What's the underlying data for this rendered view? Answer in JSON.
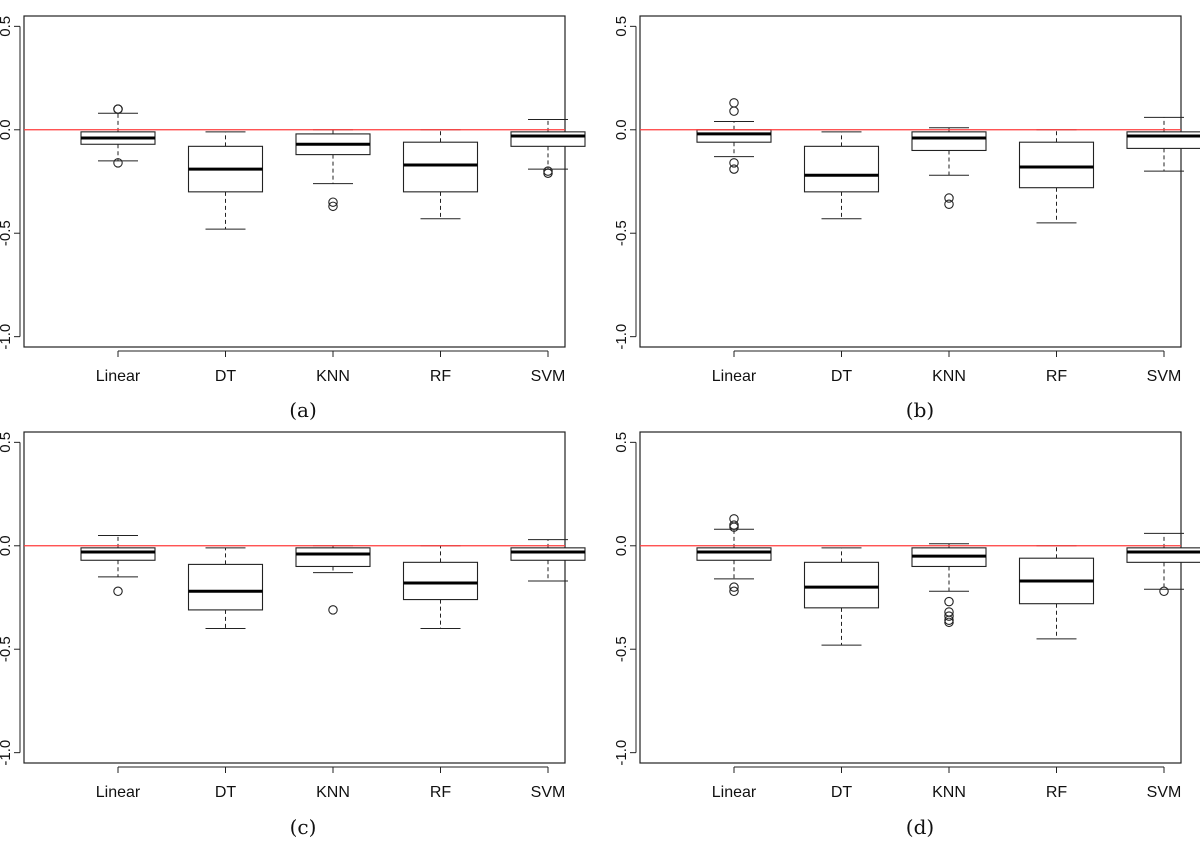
{
  "chart_data": [
    {
      "type": "box",
      "caption": "(a)",
      "categories": [
        "Linear",
        "DT",
        "KNN",
        "RF",
        "SVM"
      ],
      "yticks": [
        "-1.0",
        "-0.5",
        "0.0",
        "0.5"
      ],
      "ylim": [
        -1.05,
        0.55
      ],
      "reference_line": {
        "y": 0.0,
        "color": "#ff3b3b"
      },
      "boxes": [
        {
          "whisker_low": -0.15,
          "q1": -0.07,
          "median": -0.04,
          "q3": -0.01,
          "whisker_high": 0.08,
          "outliers": [
            0.1,
            0.1,
            -0.16
          ]
        },
        {
          "whisker_low": -0.48,
          "q1": -0.3,
          "median": -0.19,
          "q3": -0.08,
          "whisker_high": -0.01,
          "outliers": []
        },
        {
          "whisker_low": -0.26,
          "q1": -0.12,
          "median": -0.07,
          "q3": -0.02,
          "whisker_high": 0.0,
          "outliers": [
            -0.35,
            -0.37
          ]
        },
        {
          "whisker_low": -0.43,
          "q1": -0.3,
          "median": -0.17,
          "q3": -0.06,
          "whisker_high": 0.0,
          "outliers": []
        },
        {
          "whisker_low": -0.19,
          "q1": -0.08,
          "median": -0.03,
          "q3": -0.01,
          "whisker_high": 0.05,
          "outliers": [
            -0.2,
            -0.21
          ]
        }
      ]
    },
    {
      "type": "box",
      "caption": "(b)",
      "categories": [
        "Linear",
        "DT",
        "KNN",
        "RF",
        "SVM"
      ],
      "yticks": [
        "-1.0",
        "-0.5",
        "0.0",
        "0.5"
      ],
      "ylim": [
        -1.05,
        0.55
      ],
      "reference_line": {
        "y": 0.0,
        "color": "#ff3b3b"
      },
      "boxes": [
        {
          "whisker_low": -0.13,
          "q1": -0.06,
          "median": -0.02,
          "q3": 0.0,
          "whisker_high": 0.04,
          "outliers": [
            0.13,
            0.09,
            -0.16,
            -0.19
          ]
        },
        {
          "whisker_low": -0.43,
          "q1": -0.3,
          "median": -0.22,
          "q3": -0.08,
          "whisker_high": -0.01,
          "outliers": []
        },
        {
          "whisker_low": -0.22,
          "q1": -0.1,
          "median": -0.04,
          "q3": -0.01,
          "whisker_high": 0.01,
          "outliers": [
            -0.33,
            -0.36
          ]
        },
        {
          "whisker_low": -0.45,
          "q1": -0.28,
          "median": -0.18,
          "q3": -0.06,
          "whisker_high": 0.0,
          "outliers": []
        },
        {
          "whisker_low": -0.2,
          "q1": -0.09,
          "median": -0.03,
          "q3": -0.01,
          "whisker_high": 0.06,
          "outliers": []
        }
      ]
    },
    {
      "type": "box",
      "caption": "(c)",
      "categories": [
        "Linear",
        "DT",
        "KNN",
        "RF",
        "SVM"
      ],
      "yticks": [
        "-1.0",
        "-0.5",
        "0.0",
        "0.5"
      ],
      "ylim": [
        -1.05,
        0.55
      ],
      "reference_line": {
        "y": 0.0,
        "color": "#ff3b3b"
      },
      "boxes": [
        {
          "whisker_low": -0.15,
          "q1": -0.07,
          "median": -0.03,
          "q3": -0.01,
          "whisker_high": 0.05,
          "outliers": [
            -0.22
          ]
        },
        {
          "whisker_low": -0.4,
          "q1": -0.31,
          "median": -0.22,
          "q3": -0.09,
          "whisker_high": -0.01,
          "outliers": []
        },
        {
          "whisker_low": -0.13,
          "q1": -0.1,
          "median": -0.04,
          "q3": -0.01,
          "whisker_high": 0.0,
          "outliers": [
            -0.31
          ]
        },
        {
          "whisker_low": -0.4,
          "q1": -0.26,
          "median": -0.18,
          "q3": -0.08,
          "whisker_high": 0.0,
          "outliers": []
        },
        {
          "whisker_low": -0.17,
          "q1": -0.07,
          "median": -0.03,
          "q3": -0.01,
          "whisker_high": 0.03,
          "outliers": []
        }
      ]
    },
    {
      "type": "box",
      "caption": "(d)",
      "categories": [
        "Linear",
        "DT",
        "KNN",
        "RF",
        "SVM"
      ],
      "yticks": [
        "-1.0",
        "-0.5",
        "0.0",
        "0.5"
      ],
      "ylim": [
        -1.05,
        0.55
      ],
      "reference_line": {
        "y": 0.0,
        "color": "#ff3b3b"
      },
      "boxes": [
        {
          "whisker_low": -0.16,
          "q1": -0.07,
          "median": -0.03,
          "q3": -0.01,
          "whisker_high": 0.08,
          "outliers": [
            0.13,
            0.1,
            0.09,
            -0.2,
            -0.22
          ]
        },
        {
          "whisker_low": -0.48,
          "q1": -0.3,
          "median": -0.2,
          "q3": -0.08,
          "whisker_high": -0.01,
          "outliers": []
        },
        {
          "whisker_low": -0.22,
          "q1": -0.1,
          "median": -0.05,
          "q3": -0.01,
          "whisker_high": 0.01,
          "outliers": [
            -0.27,
            -0.32,
            -0.34,
            -0.36,
            -0.37
          ]
        },
        {
          "whisker_low": -0.45,
          "q1": -0.28,
          "median": -0.17,
          "q3": -0.06,
          "whisker_high": 0.0,
          "outliers": []
        },
        {
          "whisker_low": -0.21,
          "q1": -0.08,
          "median": -0.03,
          "q3": -0.01,
          "whisker_high": 0.06,
          "outliers": [
            -0.22
          ]
        }
      ]
    }
  ]
}
